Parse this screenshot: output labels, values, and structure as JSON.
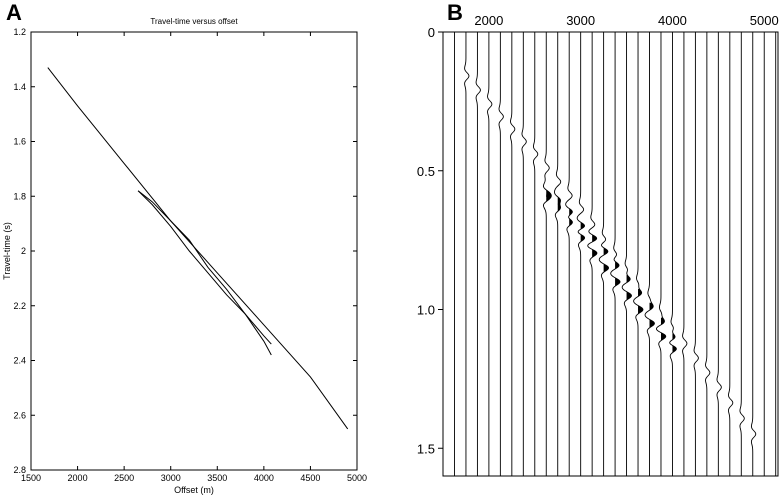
{
  "panels": {
    "a_letter": "A",
    "b_letter": "B"
  },
  "chart_data": [
    {
      "type": "line",
      "title": "Travel-time versus offset",
      "xlabel": "Offset (m)",
      "ylabel": "Travel-time (s)",
      "xlim": [
        1500,
        5000
      ],
      "ylim": [
        1.2,
        2.8
      ],
      "y_inverted": true,
      "grid": false,
      "x_ticks": [
        "1500",
        "2000",
        "2500",
        "3000",
        "3500",
        "4000",
        "4500",
        "5000"
      ],
      "y_ticks": [
        "1.2",
        "1.4",
        "1.6",
        "1.8",
        "2",
        "2.2",
        "2.4",
        "2.6",
        "2.8"
      ],
      "series": [
        {
          "x": [
            1680,
            2000,
            2500,
            3000,
            3500,
            4000,
            4500,
            4900
          ],
          "y": [
            1.33,
            1.47,
            1.68,
            1.89,
            2.08,
            2.27,
            2.46,
            2.65
          ]
        },
        {
          "x": [
            2650,
            2800,
            3000,
            3200,
            3400,
            3600,
            3800,
            4000,
            4080
          ],
          "y": [
            1.78,
            1.82,
            1.89,
            1.96,
            2.06,
            2.14,
            2.23,
            2.33,
            2.38
          ]
        },
        {
          "x": [
            2650,
            2800,
            3000,
            3200,
            3400,
            3600,
            3800,
            4000,
            4080
          ],
          "y": [
            1.78,
            1.83,
            1.91,
            2.0,
            2.08,
            2.16,
            2.23,
            2.31,
            2.34
          ]
        }
      ]
    },
    {
      "type": "line",
      "subtype": "seismic-wiggle-traces",
      "xlim": [
        1500,
        5150
      ],
      "ylim": [
        0,
        1.6
      ],
      "y_inverted": true,
      "x_axis_position": "top",
      "grid": false,
      "x_ticks": [
        "2000",
        "3000",
        "4000",
        "5000"
      ],
      "y_ticks": [
        "0",
        "0.5",
        "1.0",
        "1.5"
      ],
      "trace_offsets": [
        1500,
        1625,
        1750,
        1875,
        2000,
        2125,
        2250,
        2375,
        2500,
        2625,
        2750,
        2875,
        3000,
        3125,
        3250,
        3375,
        3500,
        3625,
        3750,
        3875,
        4000,
        4125,
        4250,
        4375,
        4500,
        4625,
        4750,
        4875,
        5000,
        5125
      ],
      "events": [
        {
          "x": [
            1680,
            2000,
            2500,
            3000,
            3500,
            4000,
            4500,
            4900
          ],
          "t": [
            0.13,
            0.26,
            0.44,
            0.64,
            0.86,
            1.07,
            1.28,
            1.46
          ]
        },
        {
          "x": [
            2650,
            2800,
            3000,
            3200,
            3400,
            3600,
            3800,
            4000,
            4080
          ],
          "t": [
            0.58,
            0.62,
            0.7,
            0.77,
            0.85,
            0.93,
            1.01,
            1.1,
            1.14
          ]
        },
        {
          "x": [
            2650,
            2800,
            3000,
            3200,
            3400,
            3600,
            3800,
            4000,
            4080
          ],
          "t": [
            0.6,
            0.65,
            0.74,
            0.83,
            0.91,
            0.99,
            1.07,
            1.14,
            1.17
          ]
        }
      ]
    }
  ]
}
